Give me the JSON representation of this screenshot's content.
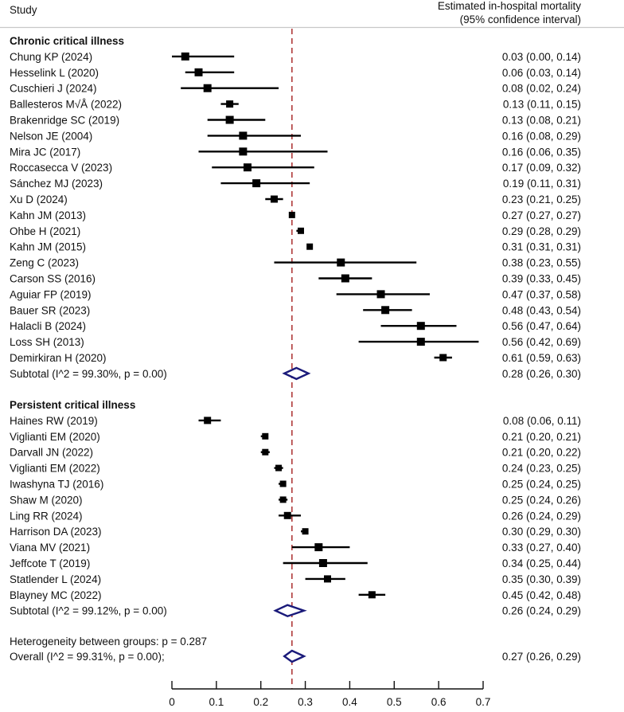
{
  "header": {
    "study_label": "Study",
    "estimate_label_line1": "Estimated in-hospital mortality",
    "estimate_label_line2": "(95% confidence interval)"
  },
  "colors": {
    "marker": "#000000",
    "diamond": "#1a1a7a",
    "reference_line": "#b03a3a"
  },
  "chart_data": {
    "type": "forest",
    "xlabel": "",
    "xlim": [
      0,
      0.7
    ],
    "xticks": [
      "0",
      "0.1",
      "0.2",
      "0.3",
      "0.4",
      "0.5",
      "0.6",
      "0.7"
    ],
    "xtick_values": [
      0,
      0.1,
      0.2,
      0.3,
      0.4,
      0.5,
      0.6,
      0.7
    ],
    "reference_line": 0.27,
    "groups": [
      {
        "title": "Chronic critical illness",
        "studies": [
          {
            "label": "Chung KP (2024)",
            "est": 0.03,
            "lo": 0.0,
            "hi": 0.14,
            "text": "0.03 (0.00, 0.14)"
          },
          {
            "label": "Hesselink L (2020)",
            "est": 0.06,
            "lo": 0.03,
            "hi": 0.14,
            "text": "0.06 (0.03, 0.14)"
          },
          {
            "label": "Cuschieri J (2024)",
            "est": 0.08,
            "lo": 0.02,
            "hi": 0.24,
            "text": "0.08 (0.02, 0.24)"
          },
          {
            "label": "Ballesteros M√Å (2022)",
            "est": 0.13,
            "lo": 0.11,
            "hi": 0.15,
            "text": "0.13 (0.11, 0.15)"
          },
          {
            "label": "Brakenridge SC (2019)",
            "est": 0.13,
            "lo": 0.08,
            "hi": 0.21,
            "text": "0.13 (0.08, 0.21)"
          },
          {
            "label": "Nelson JE (2004)",
            "est": 0.16,
            "lo": 0.08,
            "hi": 0.29,
            "text": "0.16 (0.08, 0.29)"
          },
          {
            "label": "Mira JC (2017)",
            "est": 0.16,
            "lo": 0.06,
            "hi": 0.35,
            "text": "0.16 (0.06, 0.35)"
          },
          {
            "label": "Roccasecca V (2023)",
            "est": 0.17,
            "lo": 0.09,
            "hi": 0.32,
            "text": "0.17 (0.09, 0.32)"
          },
          {
            "label": "Sánchez MJ  (2023)",
            "est": 0.19,
            "lo": 0.11,
            "hi": 0.31,
            "text": "0.19 (0.11, 0.31)"
          },
          {
            "label": "Xu D (2024)",
            "est": 0.23,
            "lo": 0.21,
            "hi": 0.25,
            "text": "0.23 (0.21, 0.25)"
          },
          {
            "label": "Kahn JM (2013)",
            "est": 0.27,
            "lo": 0.27,
            "hi": 0.27,
            "text": "0.27 (0.27, 0.27)"
          },
          {
            "label": "Ohbe H (2021)",
            "est": 0.29,
            "lo": 0.28,
            "hi": 0.29,
            "text": "0.29 (0.28, 0.29)"
          },
          {
            "label": "Kahn JM (2015)",
            "est": 0.31,
            "lo": 0.31,
            "hi": 0.31,
            "text": "0.31 (0.31, 0.31)"
          },
          {
            "label": "Zeng C (2023)",
            "est": 0.38,
            "lo": 0.23,
            "hi": 0.55,
            "text": "0.38 (0.23, 0.55)"
          },
          {
            "label": "Carson SS (2016)",
            "est": 0.39,
            "lo": 0.33,
            "hi": 0.45,
            "text": "0.39 (0.33, 0.45)"
          },
          {
            "label": "Aguiar FP (2019)",
            "est": 0.47,
            "lo": 0.37,
            "hi": 0.58,
            "text": "0.47 (0.37, 0.58)"
          },
          {
            "label": "Bauer SR (2023)",
            "est": 0.48,
            "lo": 0.43,
            "hi": 0.54,
            "text": "0.48 (0.43, 0.54)"
          },
          {
            "label": "Halacli B (2024)",
            "est": 0.56,
            "lo": 0.47,
            "hi": 0.64,
            "text": "0.56 (0.47, 0.64)"
          },
          {
            "label": "Loss SH (2013)",
            "est": 0.56,
            "lo": 0.42,
            "hi": 0.69,
            "text": "0.56 (0.42, 0.69)"
          },
          {
            "label": "Demirkiran H (2020)",
            "est": 0.61,
            "lo": 0.59,
            "hi": 0.63,
            "text": "0.61 (0.59, 0.63)"
          }
        ],
        "subtotal": {
          "label": "Subtotal  (I^2 = 99.30%, p = 0.00)",
          "est": 0.28,
          "lo": 0.26,
          "hi": 0.3,
          "text": "0.28 (0.26, 0.30)"
        }
      },
      {
        "title": "Persistent critical illness",
        "studies": [
          {
            "label": "Haines RW (2019)",
            "est": 0.08,
            "lo": 0.06,
            "hi": 0.11,
            "text": "0.08 (0.06, 0.11)"
          },
          {
            "label": "Viglianti EM (2020)",
            "est": 0.21,
            "lo": 0.2,
            "hi": 0.21,
            "text": "0.21 (0.20, 0.21)"
          },
          {
            "label": "Darvall JN (2022)",
            "est": 0.21,
            "lo": 0.2,
            "hi": 0.22,
            "text": "0.21 (0.20, 0.22)"
          },
          {
            "label": "Viglianti EM (2022)",
            "est": 0.24,
            "lo": 0.23,
            "hi": 0.25,
            "text": "0.24 (0.23, 0.25)"
          },
          {
            "label": "Iwashyna TJ (2016)",
            "est": 0.25,
            "lo": 0.24,
            "hi": 0.25,
            "text": "0.25 (0.24, 0.25)"
          },
          {
            "label": "Shaw M (2020)",
            "est": 0.25,
            "lo": 0.24,
            "hi": 0.26,
            "text": "0.25 (0.24, 0.26)"
          },
          {
            "label": "Ling RR (2024)",
            "est": 0.26,
            "lo": 0.24,
            "hi": 0.29,
            "text": "0.26 (0.24, 0.29)"
          },
          {
            "label": "Harrison DA (2023)",
            "est": 0.3,
            "lo": 0.29,
            "hi": 0.3,
            "text": "0.30 (0.29, 0.30)"
          },
          {
            "label": "Viana MV (2021)",
            "est": 0.33,
            "lo": 0.27,
            "hi": 0.4,
            "text": "0.33 (0.27, 0.40)"
          },
          {
            "label": "Jeffcote T (2019)",
            "est": 0.34,
            "lo": 0.25,
            "hi": 0.44,
            "text": "0.34 (0.25, 0.44)"
          },
          {
            "label": "Statlender L (2024)",
            "est": 0.35,
            "lo": 0.3,
            "hi": 0.39,
            "text": "0.35 (0.30, 0.39)"
          },
          {
            "label": "Blayney MC (2022)",
            "est": 0.45,
            "lo": 0.42,
            "hi": 0.48,
            "text": "0.45 (0.42, 0.48)"
          }
        ],
        "subtotal": {
          "label": "Subtotal  (I^2 = 99.12%, p = 0.00)",
          "est": 0.26,
          "lo": 0.24,
          "hi": 0.29,
          "text": "0.26 (0.24, 0.29)"
        }
      }
    ],
    "heterogeneity": "Heterogeneity between groups: p = 0.287",
    "overall": {
      "label": "Overall  (I^2 = 99.31%, p = 0.00);",
      "est": 0.27,
      "lo": 0.26,
      "hi": 0.29,
      "text": "0.27 (0.26, 0.29)"
    }
  }
}
